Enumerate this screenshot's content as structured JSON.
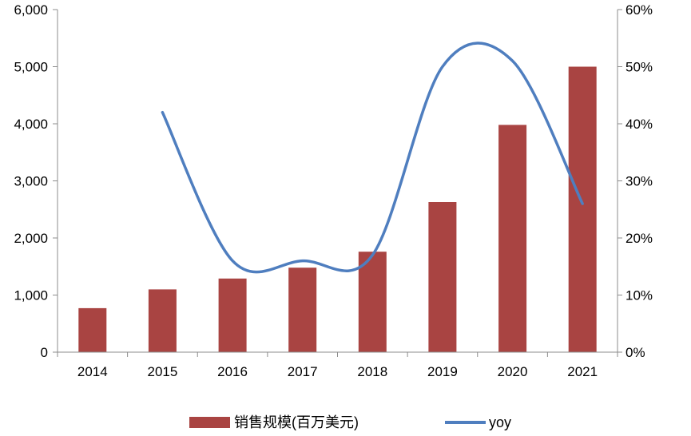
{
  "chart_data": {
    "type": "bar+line",
    "categories": [
      "2014",
      "2015",
      "2016",
      "2017",
      "2018",
      "2019",
      "2020",
      "2021"
    ],
    "series": [
      {
        "name": "销售规模(百万美元)",
        "type": "bar",
        "axis": "left",
        "color": "#A94442",
        "values": [
          770,
          1100,
          1290,
          1480,
          1760,
          2630,
          3980,
          5000
        ]
      },
      {
        "name": "yoy",
        "type": "line",
        "axis": "right",
        "color": "#4F7EBF",
        "values": [
          null,
          0.42,
          0.16,
          0.16,
          0.17,
          0.5,
          0.51,
          0.26
        ]
      }
    ],
    "left_axis": {
      "ylim": [
        0,
        6000
      ],
      "ticks": [
        0,
        1000,
        2000,
        3000,
        4000,
        5000,
        6000
      ],
      "tick_labels": [
        "0",
        "1,000",
        "2,000",
        "3,000",
        "4,000",
        "5,000",
        "6,000"
      ]
    },
    "right_axis": {
      "ylim": [
        0,
        0.6
      ],
      "ticks": [
        0,
        0.1,
        0.2,
        0.3,
        0.4,
        0.5,
        0.6
      ],
      "tick_labels": [
        "0%",
        "10%",
        "20%",
        "30%",
        "40%",
        "50%",
        "60%"
      ]
    },
    "grid": false,
    "legend_position": "bottom",
    "line_smooth": true
  }
}
